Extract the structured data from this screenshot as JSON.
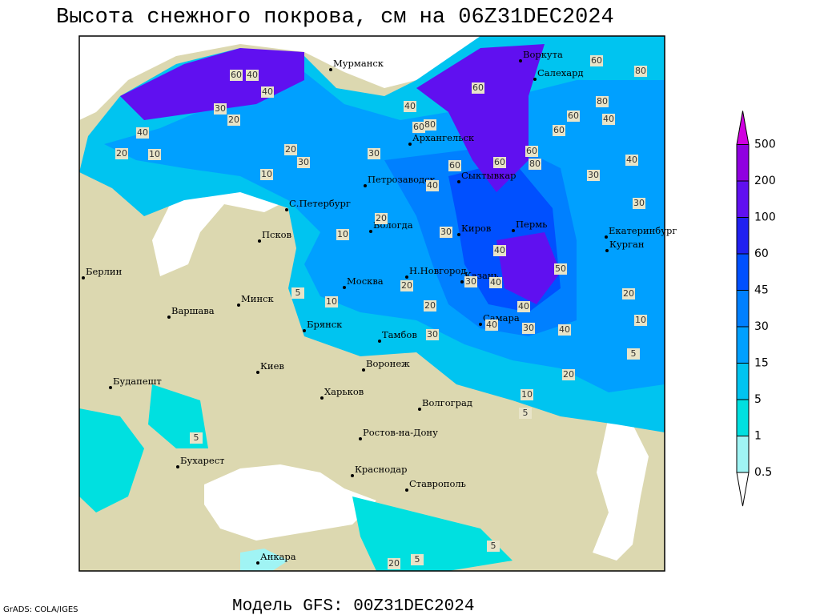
{
  "title": "Высота снежного покрова, см на 06Z31DEC2024",
  "footer": "Модель GFS: 00Z31DEC2024",
  "credit": "GrADS: COLA/IGES",
  "colorbar": {
    "levels": [
      0.5,
      1,
      5,
      15,
      30,
      45,
      60,
      100,
      200,
      500
    ],
    "colors": [
      "#ffffff",
      "#a0f4f4",
      "#00e0e0",
      "#00c4f0",
      "#00a0ff",
      "#0080ff",
      "#0050ff",
      "#2020f0",
      "#6010f0",
      "#9000e0",
      "#d000e0"
    ]
  },
  "cities": [
    "Мурманск",
    "Воркута",
    "Салехард",
    "Архангельск",
    "Сыктывкар",
    "Петрозаводск",
    "С.Петербург",
    "Вологда",
    "Киров",
    "Пермь",
    "Екатеринбург",
    "Курган",
    "Псков",
    "Н.Новгород",
    "Казань",
    "Москва",
    "Берлин",
    "Варшава",
    "Минск",
    "Брянск",
    "Тамбов",
    "Самара",
    "Киев",
    "Воронеж",
    "Будапешт",
    "Харьков",
    "Волгоград",
    "Ростов-на-Дону",
    "Бухарест",
    "Краснодар",
    "Ставрополь",
    "Анкара"
  ],
  "contour_labels": [
    40,
    60,
    40,
    30,
    20,
    40,
    20,
    10,
    20,
    30,
    10,
    30,
    40,
    60,
    80,
    60,
    60,
    40,
    60,
    80,
    60,
    60,
    80,
    80,
    60,
    40,
    60,
    40,
    30,
    30,
    20,
    30,
    10,
    40,
    50,
    30,
    20,
    40,
    10,
    5,
    20,
    40,
    20,
    10,
    40,
    30,
    30,
    40,
    5,
    20,
    10,
    5,
    5,
    20,
    5,
    5
  ]
}
